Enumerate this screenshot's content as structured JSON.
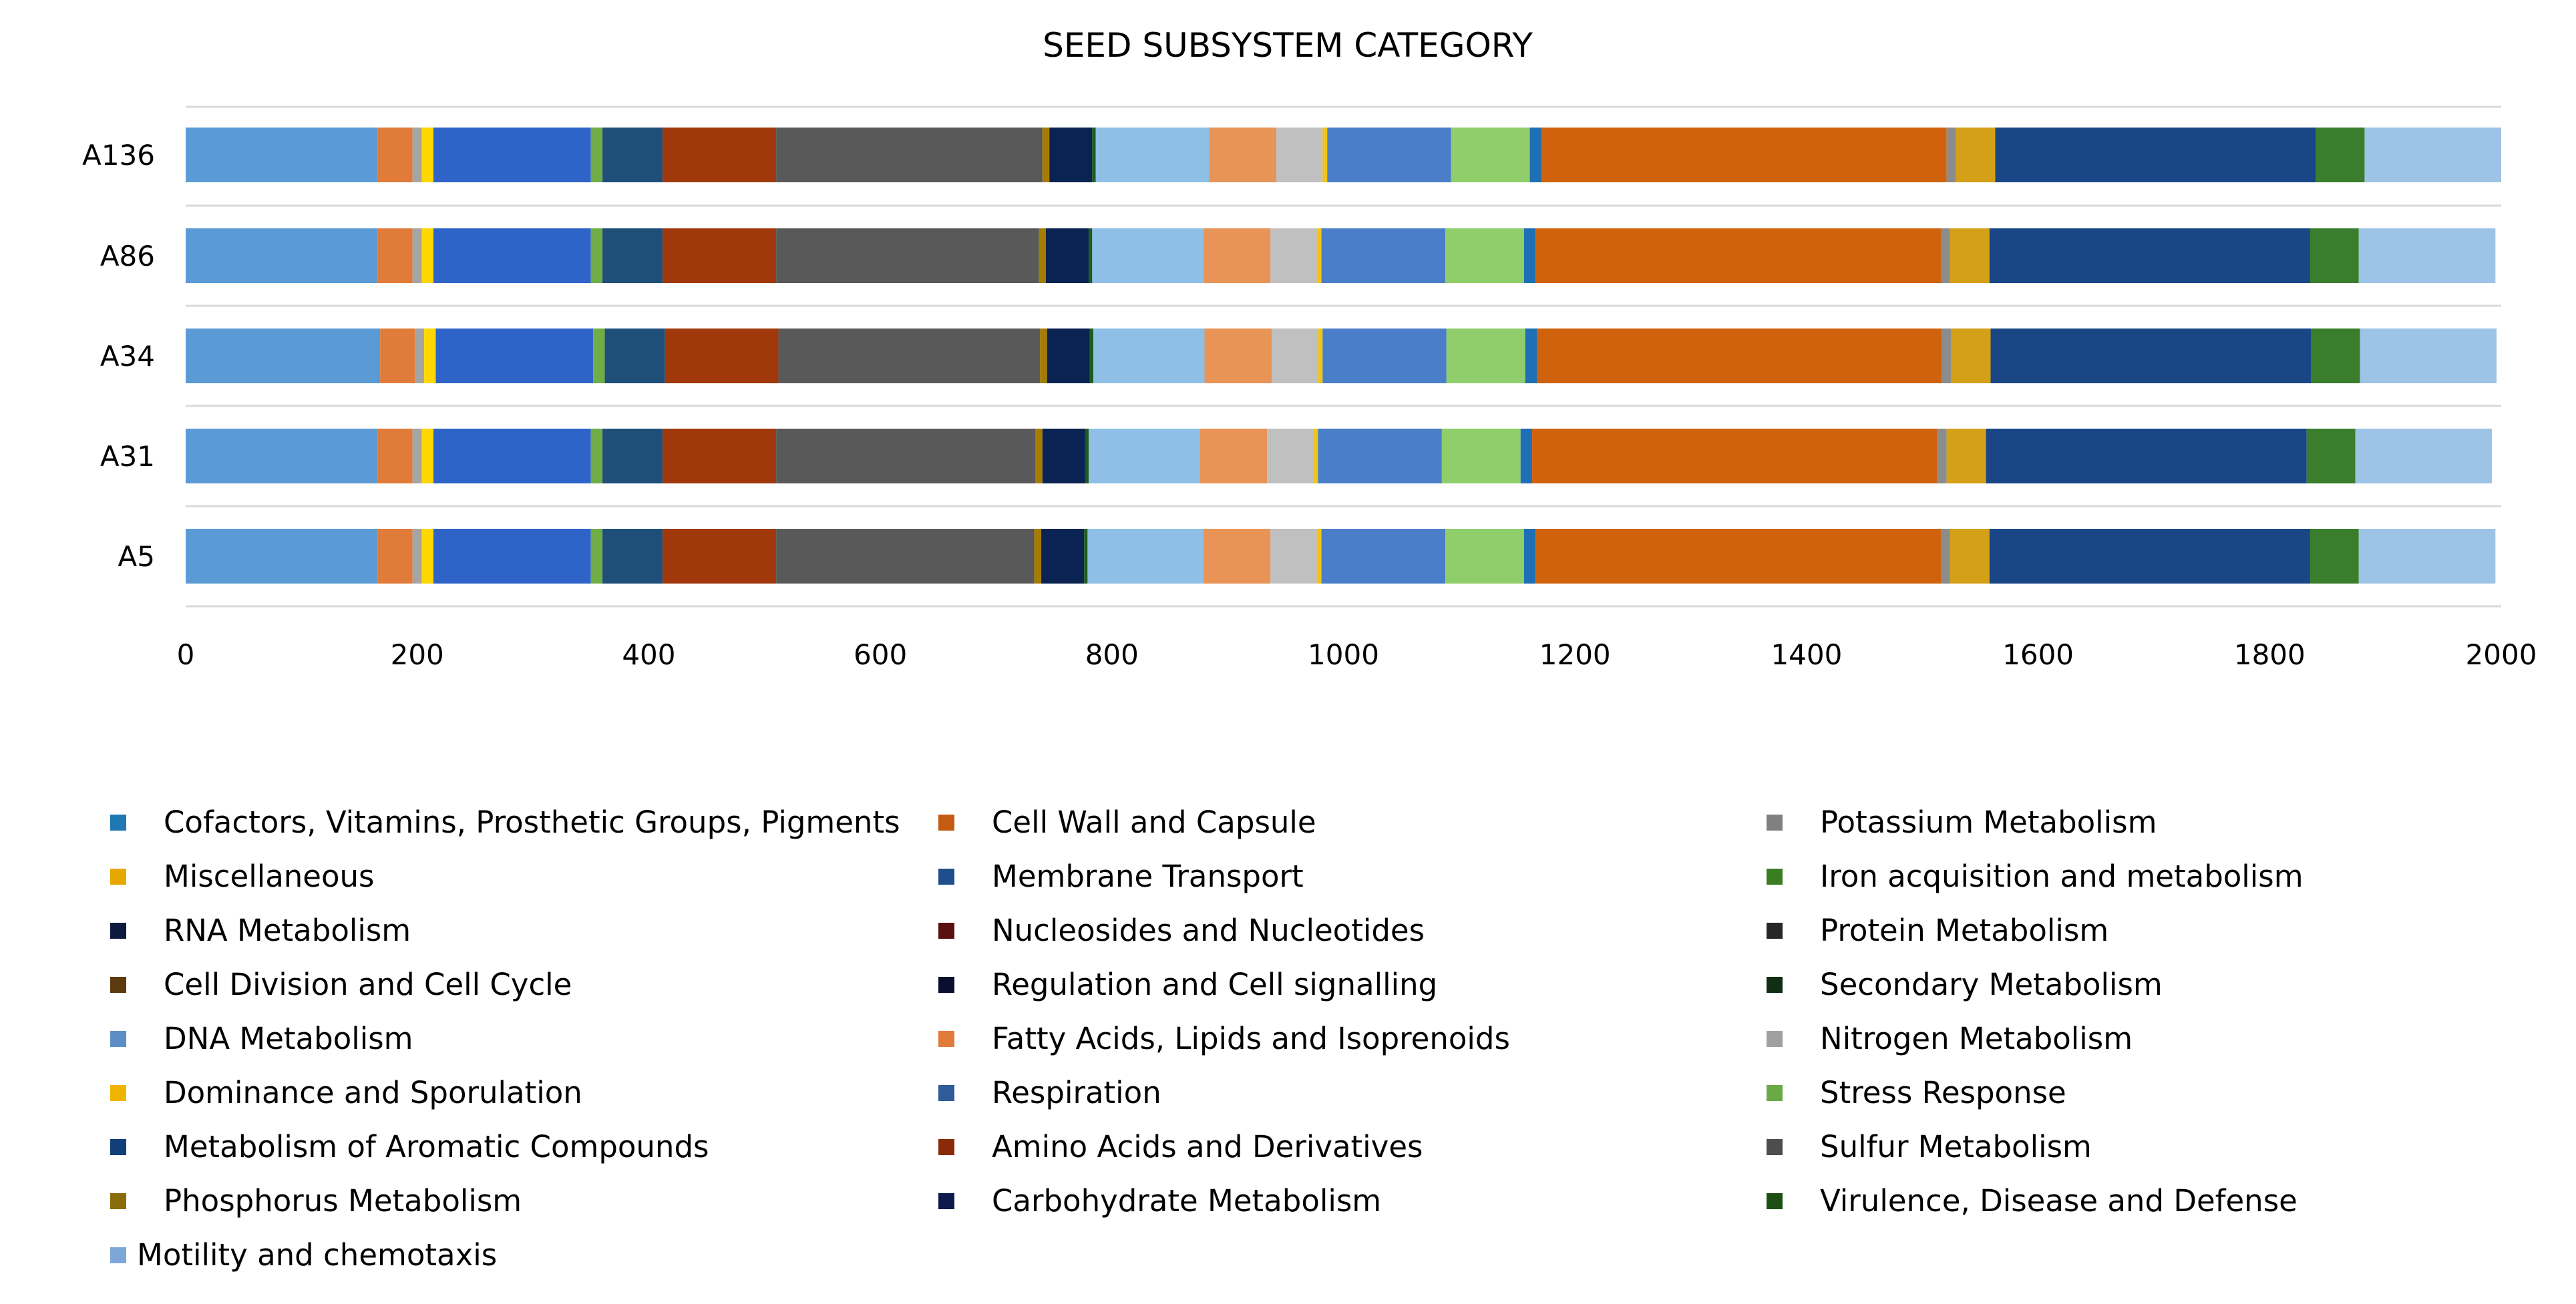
{
  "chart_data": {
    "type": "bar",
    "orientation": "horizontal",
    "stacked": true,
    "title": "SEED SUBSYSTEM CATEGORY",
    "xlabel": "",
    "ylabel": "",
    "xlim": [
      0,
      2000
    ],
    "x_ticks": [
      0,
      200,
      400,
      600,
      800,
      1000,
      1200,
      1400,
      1600,
      1800,
      2000
    ],
    "grid": true,
    "legend_position": "bottom",
    "categories": [
      "A136",
      "A86",
      "A34",
      "A31",
      "A5"
    ],
    "series": [
      {
        "name": "DNA Metabolism",
        "color": "#5b9bd5",
        "values": [
          166,
          166,
          168,
          166,
          166
        ]
      },
      {
        "name": "Fatty Acids, Lipids and Isoprenoids",
        "color": "#e07b39",
        "values": [
          30,
          30,
          30,
          30,
          30
        ]
      },
      {
        "name": "Potassium Metabolism",
        "color": "#a5a5a5",
        "values": [
          8,
          8,
          8,
          8,
          8
        ]
      },
      {
        "name": "Dominance and Sporulation",
        "color": "#ffd700",
        "values": [
          10,
          10,
          10,
          10,
          10
        ]
      },
      {
        "name": "Respiration",
        "color": "#2e64c8",
        "values": [
          136,
          136,
          136,
          136,
          136
        ]
      },
      {
        "name": "Stress Response",
        "color": "#70ad47",
        "values": [
          10,
          10,
          10,
          10,
          10
        ]
      },
      {
        "name": "Metabolism of Aromatic Compounds",
        "color": "#1f4e79",
        "values": [
          52,
          52,
          52,
          52,
          52
        ]
      },
      {
        "name": "Amino Acids and Derivatives",
        "color": "#a0380c",
        "values": [
          98,
          98,
          98,
          98,
          98
        ]
      },
      {
        "name": "Sulfur Metabolism",
        "color": "#595959",
        "values": [
          230,
          227,
          226,
          224,
          223
        ]
      },
      {
        "name": "Phosphorus Metabolism",
        "color": "#a67c00",
        "values": [
          6,
          6,
          6,
          6,
          6
        ]
      },
      {
        "name": "Carbohydrate Metabolism",
        "color": "#0a2352",
        "values": [
          37,
          37,
          37,
          37,
          37
        ]
      },
      {
        "name": "Virulence, Disease and Defense",
        "color": "#1f5c1f",
        "values": [
          3,
          3,
          3,
          3,
          3
        ]
      },
      {
        "name": "Motility and chemotaxis",
        "color": "#8fbfe6",
        "values": [
          98,
          96,
          96,
          96,
          100
        ]
      },
      {
        "name": "Cell Wall and Capsule",
        "color": "#e89456",
        "values": [
          58,
          58,
          58,
          58,
          58
        ]
      },
      {
        "name": "Nitrogen Metabolism",
        "color": "#c0c0c0",
        "values": [
          40,
          40,
          40,
          40,
          40
        ]
      },
      {
        "name": "Miscellaneous",
        "color": "#f0c419",
        "values": [
          4,
          4,
          4,
          4,
          4
        ]
      },
      {
        "name": "Cofactors, Vitamins, Prosthetic Groups, Pigments",
        "color": "#4a7ec8",
        "values": [
          107,
          107,
          107,
          107,
          107
        ]
      },
      {
        "name": "Iron acquisition and metabolism",
        "color": "#8fce6a",
        "values": [
          68,
          68,
          68,
          68,
          68
        ]
      },
      {
        "name": "Membrane Transport",
        "color": "#1f6fb5",
        "values": [
          10,
          10,
          10,
          10,
          10
        ]
      },
      {
        "name": "Cell Division and Cell Cycle",
        "color": "#d0620e",
        "values": [
          350,
          350,
          350,
          350,
          350
        ]
      },
      {
        "name": "Protein Metabolism",
        "color": "#8c8c8c",
        "values": [
          8,
          8,
          8,
          8,
          8
        ]
      },
      {
        "name": "Nucleosides and Nucleotides",
        "color": "#d4a017",
        "values": [
          34,
          34,
          34,
          34,
          34
        ]
      },
      {
        "name": "RNA Metabolism",
        "color": "#1a4686",
        "values": [
          277,
          277,
          277,
          277,
          277
        ]
      },
      {
        "name": "Regulation and Cell signalling",
        "color": "#3a7d2c",
        "values": [
          42,
          42,
          42,
          42,
          42
        ]
      },
      {
        "name": "Secondary Metabolism",
        "color": "#9dc3e6",
        "values": [
          118,
          118,
          118,
          118,
          118
        ]
      }
    ],
    "legend": [
      {
        "label": "Cofactors, Vitamins, Prosthetic Groups, Pigments",
        "color": "#1f77b4"
      },
      {
        "label": "Cell Wall and Capsule",
        "color": "#c55a11"
      },
      {
        "label": "Potassium Metabolism",
        "color": "#808080"
      },
      {
        "label": "Miscellaneous",
        "color": "#e6a800"
      },
      {
        "label": "Membrane Transport",
        "color": "#1f4e8c"
      },
      {
        "label": "Iron acquisition and metabolism",
        "color": "#3b7d23"
      },
      {
        "label": "RNA Metabolism",
        "color": "#0d1a40"
      },
      {
        "label": "Nucleosides and Nucleotides",
        "color": "#5a1010"
      },
      {
        "label": "Protein Metabolism",
        "color": "#262626"
      },
      {
        "label": "Cell Division and Cell Cycle",
        "color": "#5c3a10"
      },
      {
        "label": "Regulation and Cell signalling",
        "color": "#0a0f30"
      },
      {
        "label": "Secondary Metabolism",
        "color": "#0f2e12"
      },
      {
        "label": "DNA Metabolism",
        "color": "#5b8ec6"
      },
      {
        "label": "Fatty Acids, Lipids and Isoprenoids",
        "color": "#e07b39"
      },
      {
        "label": "Nitrogen Metabolism",
        "color": "#a0a0a0"
      },
      {
        "label": "Dominance and Sporulation",
        "color": "#f0b400"
      },
      {
        "label": "Respiration",
        "color": "#2e5d9a"
      },
      {
        "label": "Stress Response",
        "color": "#6aaa46"
      },
      {
        "label": "Metabolism of Aromatic Compounds",
        "color": "#123f7a"
      },
      {
        "label": "Amino Acids and Derivatives",
        "color": "#8b2a08"
      },
      {
        "label": "Sulfur Metabolism",
        "color": "#4d4d4d"
      },
      {
        "label": "Phosphorus Metabolism",
        "color": "#8a6d0a"
      },
      {
        "label": "Carbohydrate Metabolism",
        "color": "#0b1a4a"
      },
      {
        "label": "Virulence, Disease and Defense",
        "color": "#1d4f15"
      },
      {
        "label": "Motility and chemotaxis",
        "color": "#7da7d9"
      }
    ]
  }
}
